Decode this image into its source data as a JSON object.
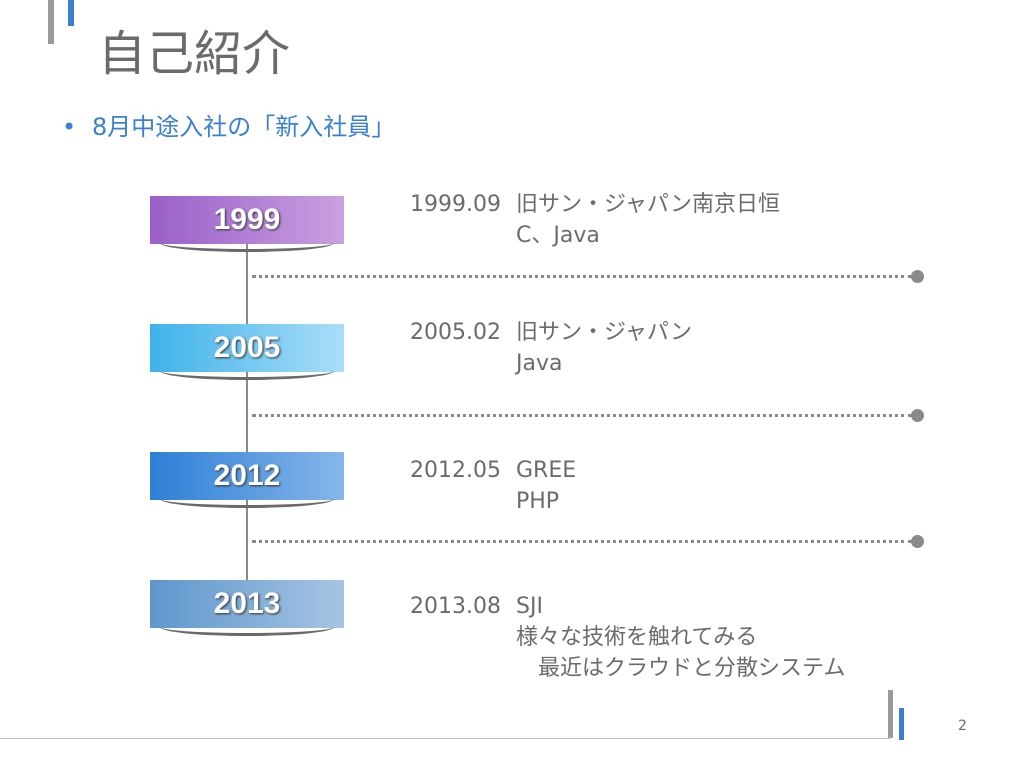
{
  "colors": {
    "accent_blue": "#3b7fd4",
    "gray_text": "#6b6b6b",
    "year_1999": "#9a5fc9",
    "year_2005": "#3fb2ea",
    "year_2012": "#2e7fd6",
    "year_2013": "#5e97cc"
  },
  "slide": {
    "title": "自己紹介",
    "bullet": "8月中途入社の「新入社員」",
    "page_number": "2"
  },
  "timeline": [
    {
      "year": "1999",
      "date": "1999.09",
      "company": "旧サン・ジャパン南京日恒",
      "detail": "C、Java"
    },
    {
      "year": "2005",
      "date": "2005.02",
      "company": "旧サン・ジャパン",
      "detail": "Java"
    },
    {
      "year": "2012",
      "date": "2012.05",
      "company": "GREE",
      "detail": "PHP"
    },
    {
      "year": "2013",
      "date": "2013.08",
      "company": "SJI",
      "detail": "様々な技術を触れてみる",
      "detail2": "最近はクラウドと分散システム"
    }
  ]
}
